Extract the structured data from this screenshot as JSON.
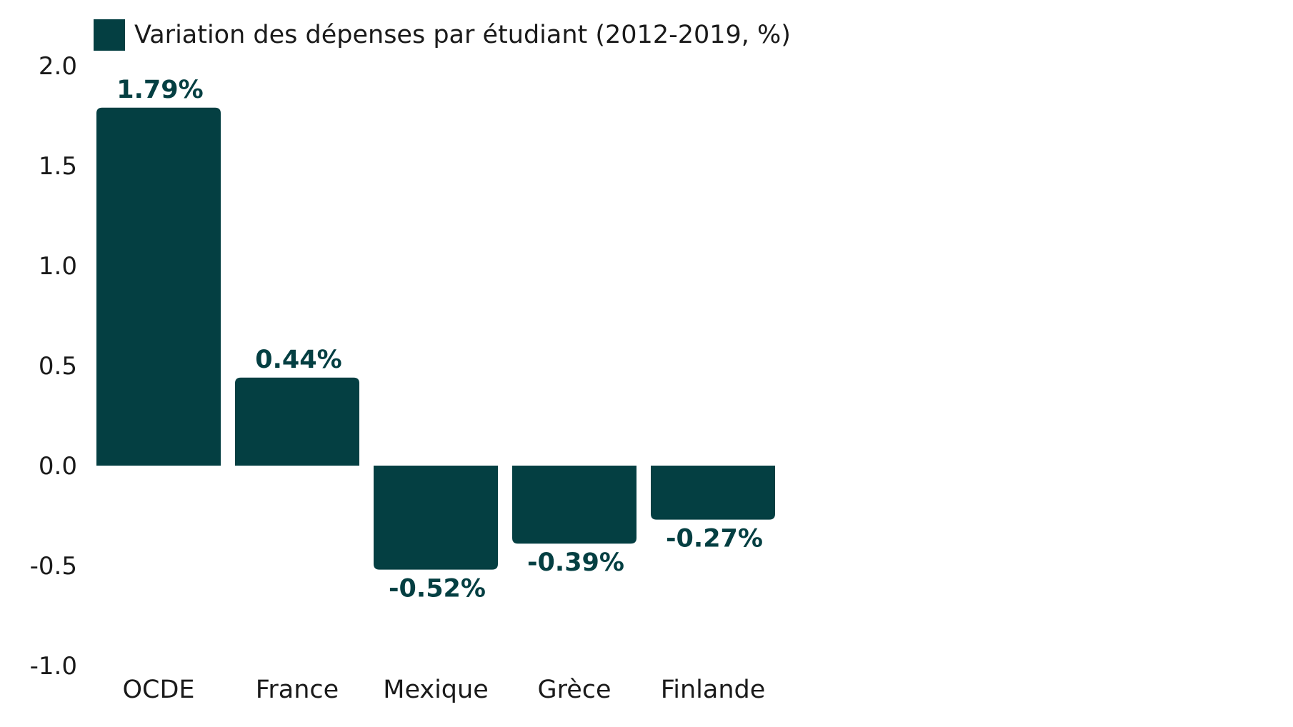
{
  "chart_data": {
    "type": "bar",
    "categories": [
      "OCDE",
      "France",
      "Mexique",
      "Grèce",
      "Finlande"
    ],
    "series": [
      {
        "name": "Variation des dépenses par étudiant (2012-2019, %)",
        "values": [
          1.79,
          0.44,
          -0.52,
          -0.39,
          -0.27
        ],
        "data_labels": [
          "1.79%",
          "0.44%",
          "-0.52%",
          "-0.39%",
          "-0.27%"
        ]
      }
    ],
    "ylim": [
      -1.0,
      2.0
    ],
    "yticks": [
      "2.0",
      "1.5",
      "1.0",
      "0.5",
      "0.0",
      "-0.5",
      "-1.0"
    ],
    "ytick_values": [
      2.0,
      1.5,
      1.0,
      0.5,
      0.0,
      -0.5,
      -1.0
    ],
    "grid": false,
    "legend_position": "top-left",
    "colors": {
      "bar": "#043f42",
      "label": "#043f42"
    }
  }
}
